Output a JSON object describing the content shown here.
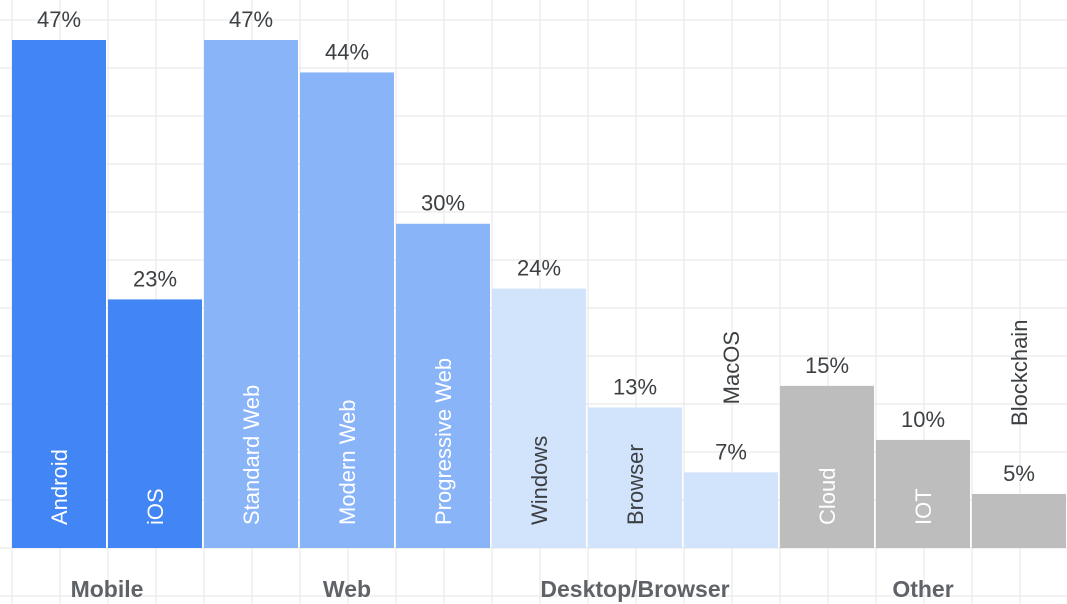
{
  "chart_data": {
    "type": "bar",
    "groups": [
      {
        "name": "Mobile",
        "color": "#4285f4",
        "label_color": "#ffffff",
        "categories": [
          "Android",
          "iOS"
        ],
        "values": [
          47,
          23
        ],
        "value_labels": [
          "47%",
          "23%"
        ]
      },
      {
        "name": "Web",
        "color": "#8ab4f8",
        "label_color": "#ffffff",
        "categories": [
          "Standard Web",
          "Modern Web",
          "Progressive Web"
        ],
        "values": [
          47,
          44,
          30
        ],
        "value_labels": [
          "47%",
          "44%",
          "30%"
        ]
      },
      {
        "name": "Desktop/Browser",
        "color": "#d2e3fc",
        "label_color": "#3c4043",
        "categories": [
          "Windows",
          "Browser",
          "MacOS"
        ],
        "values": [
          24,
          13,
          7
        ],
        "value_labels": [
          "24%",
          "13%",
          "7%"
        ]
      },
      {
        "name": "Other",
        "color": "#bdbdbd",
        "label_color": "#ffffff",
        "categories": [
          "Cloud",
          "IOT",
          "Blockchain"
        ],
        "values": [
          15,
          10,
          5
        ],
        "value_labels": [
          "15%",
          "10%",
          "5%"
        ]
      }
    ]
  }
}
